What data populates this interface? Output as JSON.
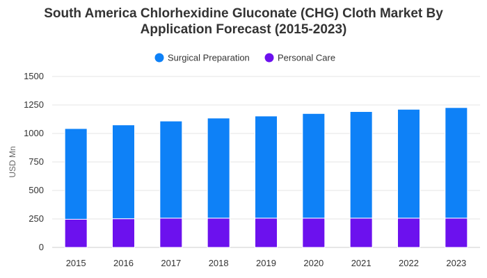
{
  "chart_data": {
    "type": "bar",
    "stacked": true,
    "title_line1": "South America Chlorhexidine Gluconate (CHG) Cloth Market By",
    "title_line2": "Application Forecast (2015-2023)",
    "xlabel": "",
    "ylabel": "USD Mn",
    "categories": [
      "2015",
      "2016",
      "2017",
      "2018",
      "2019",
      "2020",
      "2021",
      "2022",
      "2023"
    ],
    "series": [
      {
        "name": "Personal Care",
        "color": "#6c11ee",
        "values": [
          247,
          252,
          257,
          257,
          257,
          257,
          257,
          257,
          257
        ]
      },
      {
        "name": "Surgical Preparation",
        "color": "#0e81f7",
        "values": [
          796,
          823,
          852,
          878,
          896,
          918,
          935,
          955,
          970
        ]
      }
    ],
    "legend_order": [
      "Surgical Preparation",
      "Personal Care"
    ],
    "legend_position": "top",
    "ylim": [
      0,
      1500
    ],
    "yticks": [
      0,
      250,
      500,
      750,
      1000,
      1250,
      1500
    ],
    "grid": true
  }
}
